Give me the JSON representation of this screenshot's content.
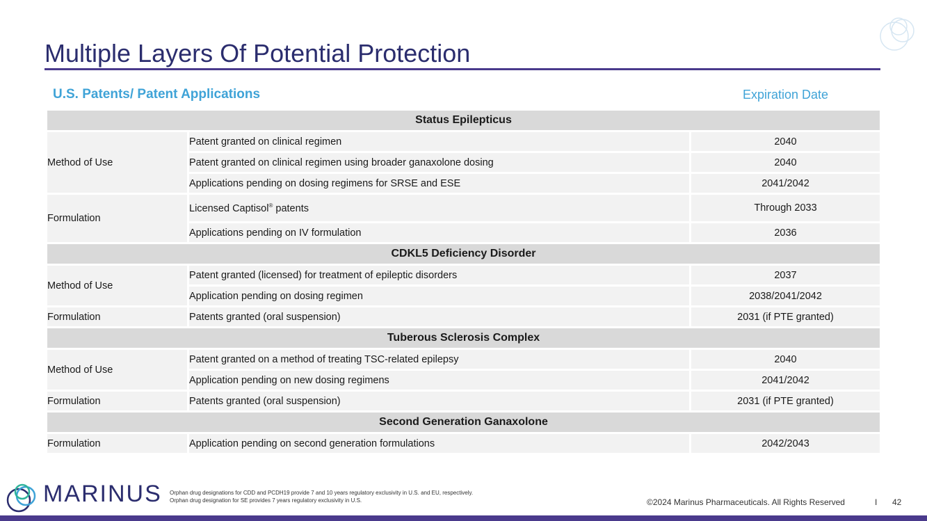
{
  "slide": {
    "title": "Multiple Layers Of Potential Protection",
    "subtitle_left": "U.S. Patents/ Patent Applications",
    "subtitle_right": "Expiration Date"
  },
  "table": {
    "sections": [
      {
        "heading": "Status Epilepticus",
        "groups": [
          {
            "category": "Method of Use",
            "rows": [
              {
                "desc": "Patent granted on clinical regimen",
                "date": "2040"
              },
              {
                "desc": "Patent granted on clinical regimen using broader ganaxolone dosing",
                "date": "2040"
              },
              {
                "desc": "Applications pending on dosing regimens for SRSE and ESE",
                "date": "2041/2042"
              }
            ]
          },
          {
            "category": "Formulation",
            "rows": [
              {
                "desc_main": "Licensed Captisol",
                "desc_sup": "®",
                "desc_tail": " patents",
                "date": "Through 2033"
              },
              {
                "desc": "Applications pending on IV formulation",
                "date": "2036"
              }
            ]
          }
        ]
      },
      {
        "heading": "CDKL5 Deficiency Disorder",
        "groups": [
          {
            "category": "Method of Use",
            "rows": [
              {
                "desc": "Patent granted (licensed) for treatment of epileptic disorders",
                "date": "2037"
              },
              {
                "desc": "Application pending on dosing regimen",
                "date": "2038/2041/2042"
              }
            ]
          },
          {
            "category": "Formulation",
            "rows": [
              {
                "desc": "Patents granted (oral suspension)",
                "date": "2031 (if PTE granted)"
              }
            ]
          }
        ]
      },
      {
        "heading": "Tuberous Sclerosis Complex",
        "groups": [
          {
            "category": "Method of Use",
            "rows": [
              {
                "desc": "Patent granted on a method of treating TSC-related epilepsy",
                "date": "2040"
              },
              {
                "desc": "Application pending on new dosing regimens",
                "date": "2041/2042"
              }
            ]
          },
          {
            "category": "Formulation",
            "rows": [
              {
                "desc": "Patents granted (oral suspension)",
                "date": "2031 (if PTE granted)"
              }
            ]
          }
        ]
      },
      {
        "heading": "Second Generation Ganaxolone",
        "groups": [
          {
            "category": "Formulation",
            "rows": [
              {
                "desc": "Application pending on second generation formulations",
                "date": "2042/2043"
              }
            ]
          }
        ]
      }
    ]
  },
  "footer": {
    "brand": "MARINUS",
    "footnote_line1": "Orphan drug designations for CDD and PCDH19 provide 7 and 10 years regulatory exclusivity in U.S. and EU, respectively.",
    "footnote_line2": "Orphan drug designation for SE provides 7 years regulatory exclusivity in U.S.",
    "copyright": "©2024 Marinus Pharmaceuticals. All Rights Reserved",
    "separator": "I",
    "page_number": "42"
  },
  "colors": {
    "title": "#2b2d6e",
    "accent_purple": "#4a3a8c",
    "subtitle_blue": "#3fa3d7",
    "section_gray": "#d9d9d9",
    "cell_gray": "#f2f2f2"
  },
  "icons": {
    "brand_logo": "marinus-rings-logo-icon",
    "corner_decoration": "light-rings-decoration-icon"
  }
}
